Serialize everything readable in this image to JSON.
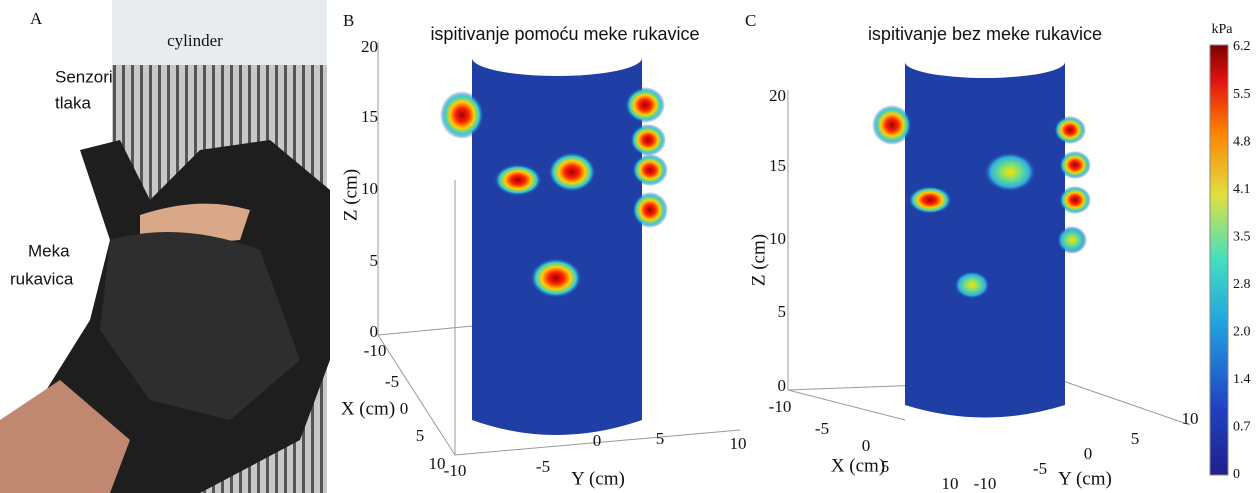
{
  "panels": [
    {
      "label": "A",
      "cylinder": "cylinder",
      "sensor_label": [
        "Senzori",
        "tlaka"
      ],
      "glove_label": [
        "Meka",
        "rukavica"
      ]
    },
    {
      "label": "B",
      "title": "ispitivanje pomoću meke rukavice",
      "z_label": "Z (cm)",
      "x_label": "X (cm)",
      "y_label": "Y (cm)",
      "z_ticks": [
        "0",
        "5",
        "10",
        "15",
        "20"
      ],
      "x_ticks": [
        "-10",
        "-5",
        "0",
        "5",
        "10"
      ],
      "y_ticks": [
        "-10",
        "-5",
        "0",
        "5",
        "10"
      ]
    },
    {
      "label": "C",
      "title": "ispitivanje bez meke rukavice",
      "z_label": "Z (cm)",
      "x_label": "X (cm)",
      "y_label": "Y (cm)",
      "z_ticks": [
        "0",
        "5",
        "10",
        "15",
        "20"
      ],
      "x_ticks": [
        "-10",
        "-5",
        "0",
        "5",
        "10"
      ],
      "y_ticks": [
        "-10",
        "-5",
        "0",
        "5",
        "10"
      ]
    }
  ],
  "colorbar": {
    "unit": "kPa",
    "ticks": [
      "6.2",
      "5.5",
      "4.8",
      "4.1",
      "3.5",
      "2.8",
      "2.0",
      "1.4",
      "0.7",
      "0"
    ]
  }
}
